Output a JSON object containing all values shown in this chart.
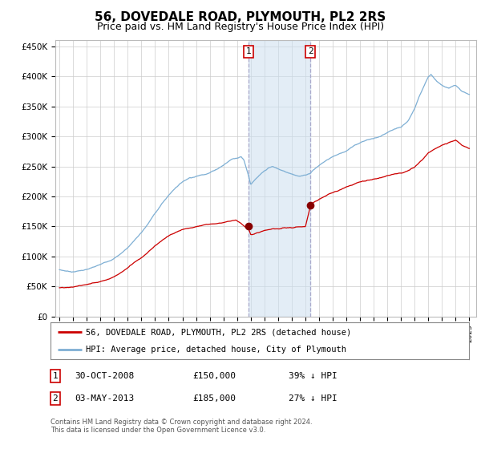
{
  "title": "56, DOVEDALE ROAD, PLYMOUTH, PL2 2RS",
  "subtitle": "Price paid vs. HM Land Registry's House Price Index (HPI)",
  "footer": "Contains HM Land Registry data © Crown copyright and database right 2024.\nThis data is licensed under the Open Government Licence v3.0.",
  "legend_entry1": "56, DOVEDALE ROAD, PLYMOUTH, PL2 2RS (detached house)",
  "legend_entry2": "HPI: Average price, detached house, City of Plymouth",
  "transaction1_date": "30-OCT-2008",
  "transaction1_price": "£150,000",
  "transaction1_hpi": "39% ↓ HPI",
  "transaction2_date": "03-MAY-2013",
  "transaction2_price": "£185,000",
  "transaction2_hpi": "27% ↓ HPI",
  "hpi_color": "#7eafd4",
  "price_color": "#cc0000",
  "vline1_x": 2008.83,
  "vline2_x": 2013.37,
  "shade_color": "#ccdff0",
  "ylim": [
    0,
    460000
  ],
  "yticks": [
    0,
    50000,
    100000,
    150000,
    200000,
    250000,
    300000,
    350000,
    400000,
    450000
  ],
  "xlim": [
    1994.7,
    2025.5
  ],
  "background_color": "#ffffff",
  "grid_color": "#cccccc",
  "title_fontsize": 11,
  "subtitle_fontsize": 9
}
